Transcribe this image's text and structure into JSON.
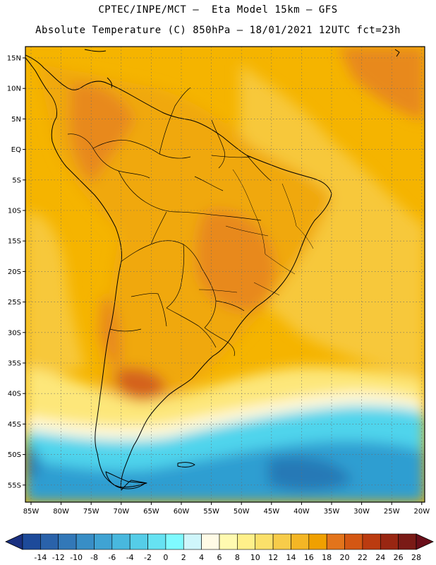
{
  "header": {
    "line1": "CPTEC/INPE/MCT –  Eta Model 15km – GFS",
    "line2": "Absolute Temperature (C) 850hPa – 18/01/2021 12UTC fct=23h"
  },
  "map": {
    "lat_labels": [
      "15N",
      "10N",
      "5N",
      "EQ",
      "5S",
      "10S",
      "15S",
      "20S",
      "25S",
      "30S",
      "35S",
      "40S",
      "45S",
      "50S",
      "55S"
    ],
    "lon_labels": [
      "85W",
      "80W",
      "75W",
      "70W",
      "65W",
      "60W",
      "55W",
      "50W",
      "45W",
      "40W",
      "35W",
      "30W",
      "25W",
      "20W"
    ],
    "colors": {
      "ocean_warm": "#f5b400",
      "ocean_mid": "#f7c83a",
      "land": "#f0a808",
      "hot": "#e8891f",
      "very_hot": "#d4621b",
      "cool_yellow": "#fde77a",
      "pale": "#fff9dd",
      "cyan": "#4fd4ec",
      "blue": "#2f9ed1",
      "deep_blue": "#2679b6"
    }
  },
  "colorbar": {
    "labels": [
      "-14",
      "-12",
      "-10",
      "-8",
      "-6",
      "-4",
      "-2",
      "0",
      "2",
      "4",
      "6",
      "8",
      "10",
      "12",
      "14",
      "16",
      "18",
      "20",
      "22",
      "24",
      "26",
      "28"
    ],
    "colors": [
      "#1d4a9a",
      "#2a62aa",
      "#3278b8",
      "#388ec6",
      "#3fa3d3",
      "#48b8de",
      "#55cde8",
      "#66e2f2",
      "#7ffaff",
      "#cff6fb",
      "#fffbe6",
      "#fffab0",
      "#fff08a",
      "#fbe06a",
      "#f7cc4a",
      "#f4b625",
      "#f0a000",
      "#e3741b",
      "#d45713",
      "#bb3b10",
      "#992612",
      "#7a1a16"
    ],
    "left_cap": "#1a3080",
    "right_cap": "#6a0e1a"
  }
}
